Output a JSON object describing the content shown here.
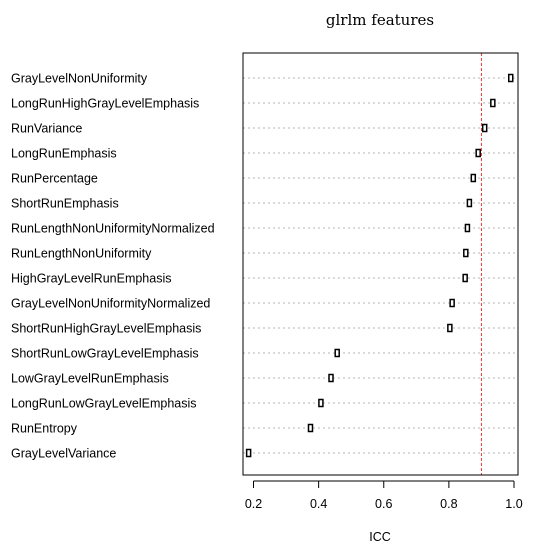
{
  "chart_data": {
    "type": "dotplot",
    "title": "glrlm features",
    "xlabel": "ICC",
    "xlim": [
      0.18,
      1.0
    ],
    "xticks": [
      0.2,
      0.4,
      0.6,
      0.8,
      1.0
    ],
    "xtick_labels": [
      "0.2",
      "0.4",
      "0.6",
      "0.8",
      "1.0"
    ],
    "reference_line": 0.9,
    "reference_color": "#e8383b",
    "grid": "dotted horizontal",
    "categories": [
      "GrayLevelNonUniformity",
      "LongRunHighGrayLevelEmphasis",
      "RunVariance",
      "LongRunEmphasis",
      "RunPercentage",
      "ShortRunEmphasis",
      "RunLengthNonUniformityNormalized",
      "RunLengthNonUniformity",
      "HighGrayLevelRunEmphasis",
      "GrayLevelNonUniformityNormalized",
      "ShortRunHighGrayLevelEmphasis",
      "ShortRunLowGrayLevelEmphasis",
      "LowGrayLevelRunEmphasis",
      "LongRunLowGrayLevelEmphasis",
      "RunEntropy",
      "GrayLevelVariance"
    ],
    "values": [
      0.99,
      0.935,
      0.91,
      0.89,
      0.875,
      0.863,
      0.857,
      0.852,
      0.85,
      0.81,
      0.803,
      0.457,
      0.438,
      0.407,
      0.375,
      0.185
    ]
  }
}
